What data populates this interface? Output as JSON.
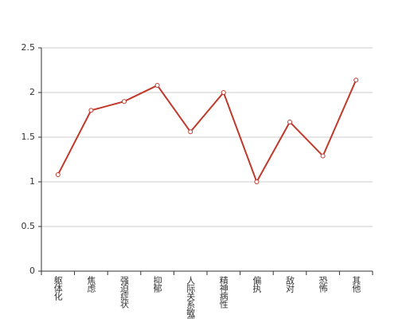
{
  "chart_data": {
    "type": "line",
    "categories": [
      "躯体化",
      "焦虑",
      "强迫症状",
      "抑郁",
      "人际关系敏感",
      "精神病性",
      "偏执",
      "敌对",
      "恐怖",
      "其他"
    ],
    "values": [
      1.08,
      1.8,
      1.9,
      2.08,
      1.56,
      2.0,
      1.0,
      1.67,
      1.29,
      2.14
    ],
    "color": "#c0392b",
    "ylim": [
      0,
      2.5
    ],
    "yticks": [
      0,
      0.5,
      1,
      1.5,
      2,
      2.5
    ],
    "grid": true
  }
}
